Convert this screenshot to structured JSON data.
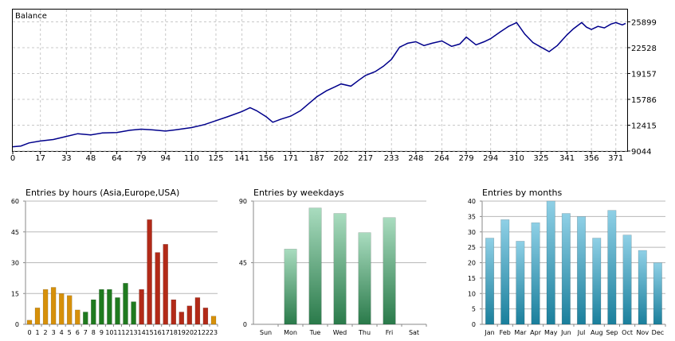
{
  "chart_data": [
    {
      "type": "line",
      "legend": "Balance",
      "x_ticks": [
        0,
        17,
        33,
        48,
        64,
        79,
        94,
        110,
        125,
        141,
        156,
        171,
        187,
        202,
        217,
        233,
        248,
        264,
        279,
        294,
        310,
        325,
        341,
        356,
        371
      ],
      "y_ticks": [
        9044,
        12415,
        15786,
        19157,
        22528,
        25899
      ],
      "xlim": [
        0,
        378
      ],
      "ylim": [
        9044,
        27500
      ],
      "grid": true,
      "series": [
        {
          "color": "#00008b",
          "x": [
            0,
            5,
            10,
            17,
            25,
            33,
            40,
            48,
            55,
            64,
            72,
            79,
            86,
            94,
            100,
            110,
            118,
            125,
            132,
            141,
            146,
            150,
            156,
            160,
            165,
            171,
            177,
            182,
            187,
            193,
            198,
            202,
            208,
            213,
            217,
            223,
            228,
            233,
            238,
            243,
            248,
            253,
            258,
            264,
            270,
            275,
            279,
            285,
            290,
            294,
            300,
            305,
            310,
            315,
            320,
            325,
            330,
            335,
            341,
            345,
            350,
            353,
            356,
            360,
            364,
            368,
            371,
            375,
            377
          ],
          "y": [
            9600,
            9700,
            10100,
            10350,
            10550,
            10950,
            11300,
            11150,
            11400,
            11450,
            11750,
            11900,
            11800,
            11650,
            11800,
            12100,
            12500,
            13000,
            13500,
            14200,
            14700,
            14300,
            13500,
            12800,
            13200,
            13600,
            14300,
            15200,
            16100,
            16900,
            17400,
            17800,
            17500,
            18300,
            18900,
            19400,
            20100,
            21000,
            22600,
            23100,
            23300,
            22800,
            23100,
            23400,
            22700,
            23000,
            23900,
            22900,
            23300,
            23700,
            24600,
            25300,
            25800,
            24300,
            23200,
            22600,
            22000,
            22800,
            24200,
            25000,
            25800,
            25200,
            24900,
            25300,
            25100,
            25600,
            25800,
            25500,
            25700
          ]
        }
      ]
    },
    {
      "type": "bar",
      "title": "Entries by hours (Asia,Europe,USA)",
      "categories": [
        "0",
        "1",
        "2",
        "3",
        "4",
        "5",
        "6",
        "7",
        "8",
        "9",
        "10",
        "11",
        "12",
        "13",
        "14",
        "15",
        "16",
        "17",
        "18",
        "19",
        "20",
        "21",
        "22",
        "23"
      ],
      "values": [
        2,
        8,
        17,
        18,
        15,
        14,
        7,
        6,
        12,
        17,
        17,
        13,
        20,
        11,
        17,
        51,
        35,
        39,
        12,
        6,
        9,
        13,
        8,
        4
      ],
      "ylim": [
        0,
        60
      ],
      "y_ticks": [
        0,
        15,
        30,
        45,
        60
      ],
      "colors": [
        "#d6900a",
        "#d6900a",
        "#d6900a",
        "#d6900a",
        "#d6900a",
        "#d6900a",
        "#d6900a",
        "#1f7a1f",
        "#1f7a1f",
        "#1f7a1f",
        "#1f7a1f",
        "#1f7a1f",
        "#1f7a1f",
        "#1f7a1f",
        "#b22a18",
        "#b22a18",
        "#b22a18",
        "#b22a18",
        "#b22a18",
        "#b22a18",
        "#b22a18",
        "#b22a18",
        "#b22a18",
        "#d6900a"
      ],
      "grid": true
    },
    {
      "type": "bar",
      "title": "Entries by weekdays",
      "categories": [
        "Sun",
        "Mon",
        "Tue",
        "Wed",
        "Thu",
        "Fri",
        "Sat"
      ],
      "values": [
        0,
        55,
        85,
        81,
        67,
        78,
        0
      ],
      "ylim": [
        0,
        90
      ],
      "y_ticks": [
        0,
        45,
        90
      ],
      "color_top": "#a9dcbf",
      "color_bottom": "#2a7a4a",
      "grid": true
    },
    {
      "type": "bar",
      "title": "Entries by months",
      "categories": [
        "Jan",
        "Feb",
        "Mar",
        "Apr",
        "May",
        "Jun",
        "Jul",
        "Aug",
        "Sep",
        "Oct",
        "Nov",
        "Dec"
      ],
      "values": [
        28,
        34,
        27,
        33,
        40,
        36,
        35,
        28,
        37,
        29,
        24,
        20
      ],
      "ylim": [
        0,
        40
      ],
      "y_ticks": [
        0,
        5,
        10,
        15,
        20,
        25,
        30,
        35,
        40
      ],
      "color_top": "#8fd0e6",
      "color_bottom": "#1a7f9c",
      "grid": true
    }
  ]
}
